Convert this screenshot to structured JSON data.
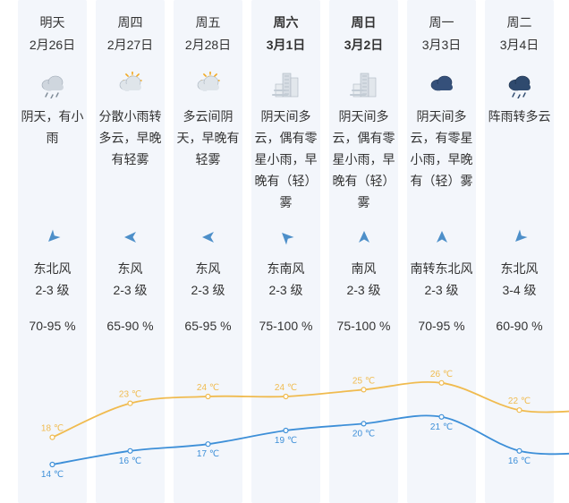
{
  "days": [
    {
      "day": "明天",
      "date": "2月26日",
      "desc": "阴天，有小雨",
      "wind_dir": "东北风",
      "wind_level": "2-3 级",
      "humidity": "70-95 %",
      "high": "18 ℃",
      "low": "14 ℃",
      "weather_icon": "cloud-rain-icon",
      "wind_icon": "arrow-sw-icon"
    },
    {
      "day": "周四",
      "date": "2月27日",
      "desc": "分散小雨转多云，早晚有轻雾",
      "wind_dir": "东风",
      "wind_level": "2-3 级",
      "humidity": "65-90 %",
      "high": "23 ℃",
      "low": "16 ℃",
      "weather_icon": "sun-cloud-icon",
      "wind_icon": "arrow-w-icon"
    },
    {
      "day": "周五",
      "date": "2月28日",
      "desc": "多云间阴天，早晚有轻雾",
      "wind_dir": "东风",
      "wind_level": "2-3 级",
      "humidity": "65-95 %",
      "high": "24 ℃",
      "low": "17 ℃",
      "weather_icon": "sun-cloud-icon",
      "wind_icon": "arrow-w-icon"
    },
    {
      "day": "周六",
      "date": "3月1日",
      "desc": "阴天间多云，偶有零星小雨，早晚有（轻）雾",
      "wind_dir": "东南风",
      "wind_level": "2-3 级",
      "humidity": "75-100 %",
      "high": "24 ℃",
      "low": "19 ℃",
      "weather_icon": "fog-buildings-icon",
      "wind_icon": "arrow-nw-icon"
    },
    {
      "day": "周日",
      "date": "3月2日",
      "desc": "阴天间多云，偶有零星小雨，早晚有（轻）雾",
      "wind_dir": "南风",
      "wind_level": "2-3 级",
      "humidity": "75-100 %",
      "high": "25 ℃",
      "low": "20 ℃",
      "weather_icon": "fog-buildings-icon",
      "wind_icon": "arrow-n-icon"
    },
    {
      "day": "周一",
      "date": "3月3日",
      "desc": "阴天间多云，有零星小雨，早晚有（轻）雾",
      "wind_dir": "南转东北风",
      "wind_level": "2-3 级",
      "humidity": "70-95 %",
      "high": "26 ℃",
      "low": "21 ℃",
      "weather_icon": "dark-cloud-icon",
      "wind_icon": "arrow-n-icon"
    },
    {
      "day": "周二",
      "date": "3月4日",
      "desc": "阵雨转多云",
      "wind_dir": "东北风",
      "wind_level": "3-4 级",
      "humidity": "60-90 %",
      "high": "22 ℃",
      "low": "16 ℃",
      "weather_icon": "cloud-rain-dark-icon",
      "wind_icon": "arrow-sw-icon"
    }
  ],
  "temps": {
    "high": [
      18,
      23,
      24,
      24,
      25,
      26,
      22
    ],
    "low": [
      14,
      16,
      17,
      19,
      20,
      21,
      16
    ]
  },
  "colors": {
    "high_line": "#f0bb4f",
    "low_line": "#3d8fd8",
    "column_bg": "#f3f6fb"
  }
}
